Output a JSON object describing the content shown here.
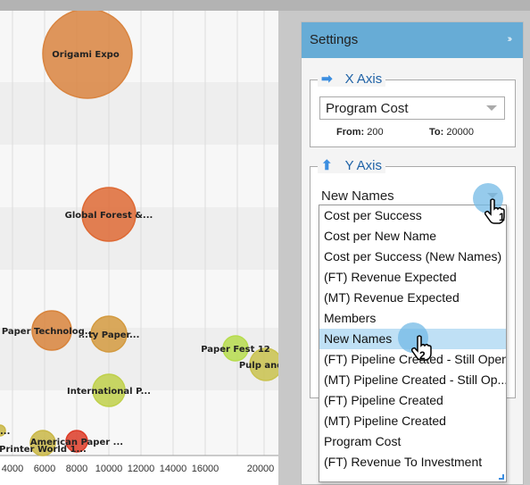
{
  "settings": {
    "title": "Settings",
    "collapse_icon": "double-chevron-right-icon",
    "x_axis": {
      "legend": "X Axis",
      "icon": "arrow-right-icon",
      "selected": "Program Cost",
      "from_label": "From:",
      "from_value": "200",
      "to_label": "To:",
      "to_value": "20000"
    },
    "y_axis": {
      "legend": "Y Axis",
      "icon": "arrow-up-icon",
      "selected": "New Names"
    }
  },
  "dropdown": {
    "options": [
      "Cost per Success",
      "Cost per New Name",
      "Cost per Success (New Names)",
      "(FT) Revenue Expected",
      "(MT) Revenue Expected",
      "Members",
      "New Names",
      "(FT) Pipeline Created - Still Open",
      "(MT) Pipeline Created - Still Op...",
      "(FT) Pipeline Created",
      "(MT) Pipeline Created",
      "Program Cost",
      "(FT) Revenue To Investment"
    ],
    "highlighted_index": 6
  },
  "cursor_steps": [
    "1",
    "2"
  ],
  "chart_data": {
    "type": "scatter",
    "x_ticks": [
      "4000",
      "6000",
      "8000",
      "10000",
      "12000",
      "14000",
      "16000",
      "20000"
    ],
    "bubbles": [
      {
        "label": "Origami Expo",
        "x": 9000,
        "color": "#d9843f"
      },
      {
        "label": "Global Forest &...",
        "x": 10000,
        "color": "#de6a35"
      },
      {
        "label": "Paper Technolog...",
        "x": 5500,
        "color": "#d8843c"
      },
      {
        "label": "...ty Paper...",
        "x": 10000,
        "color": "#d39a3f"
      },
      {
        "label": "Paper Fest 12",
        "x": 16000,
        "color": "#b6dc4d"
      },
      {
        "label": "Pulp and P",
        "x": 20000,
        "color": "#c9c24d"
      },
      {
        "label": "International P...",
        "x": 10000,
        "color": "#bfd04a"
      },
      {
        "label": "American Paper ...",
        "x": 8000,
        "color": "#dd3c28"
      },
      {
        "label": "Printer World 1...",
        "x": 6000,
        "color": "#c9b747"
      },
      {
        "label": "...",
        "x": 4000,
        "color": "#c9b747"
      }
    ]
  }
}
